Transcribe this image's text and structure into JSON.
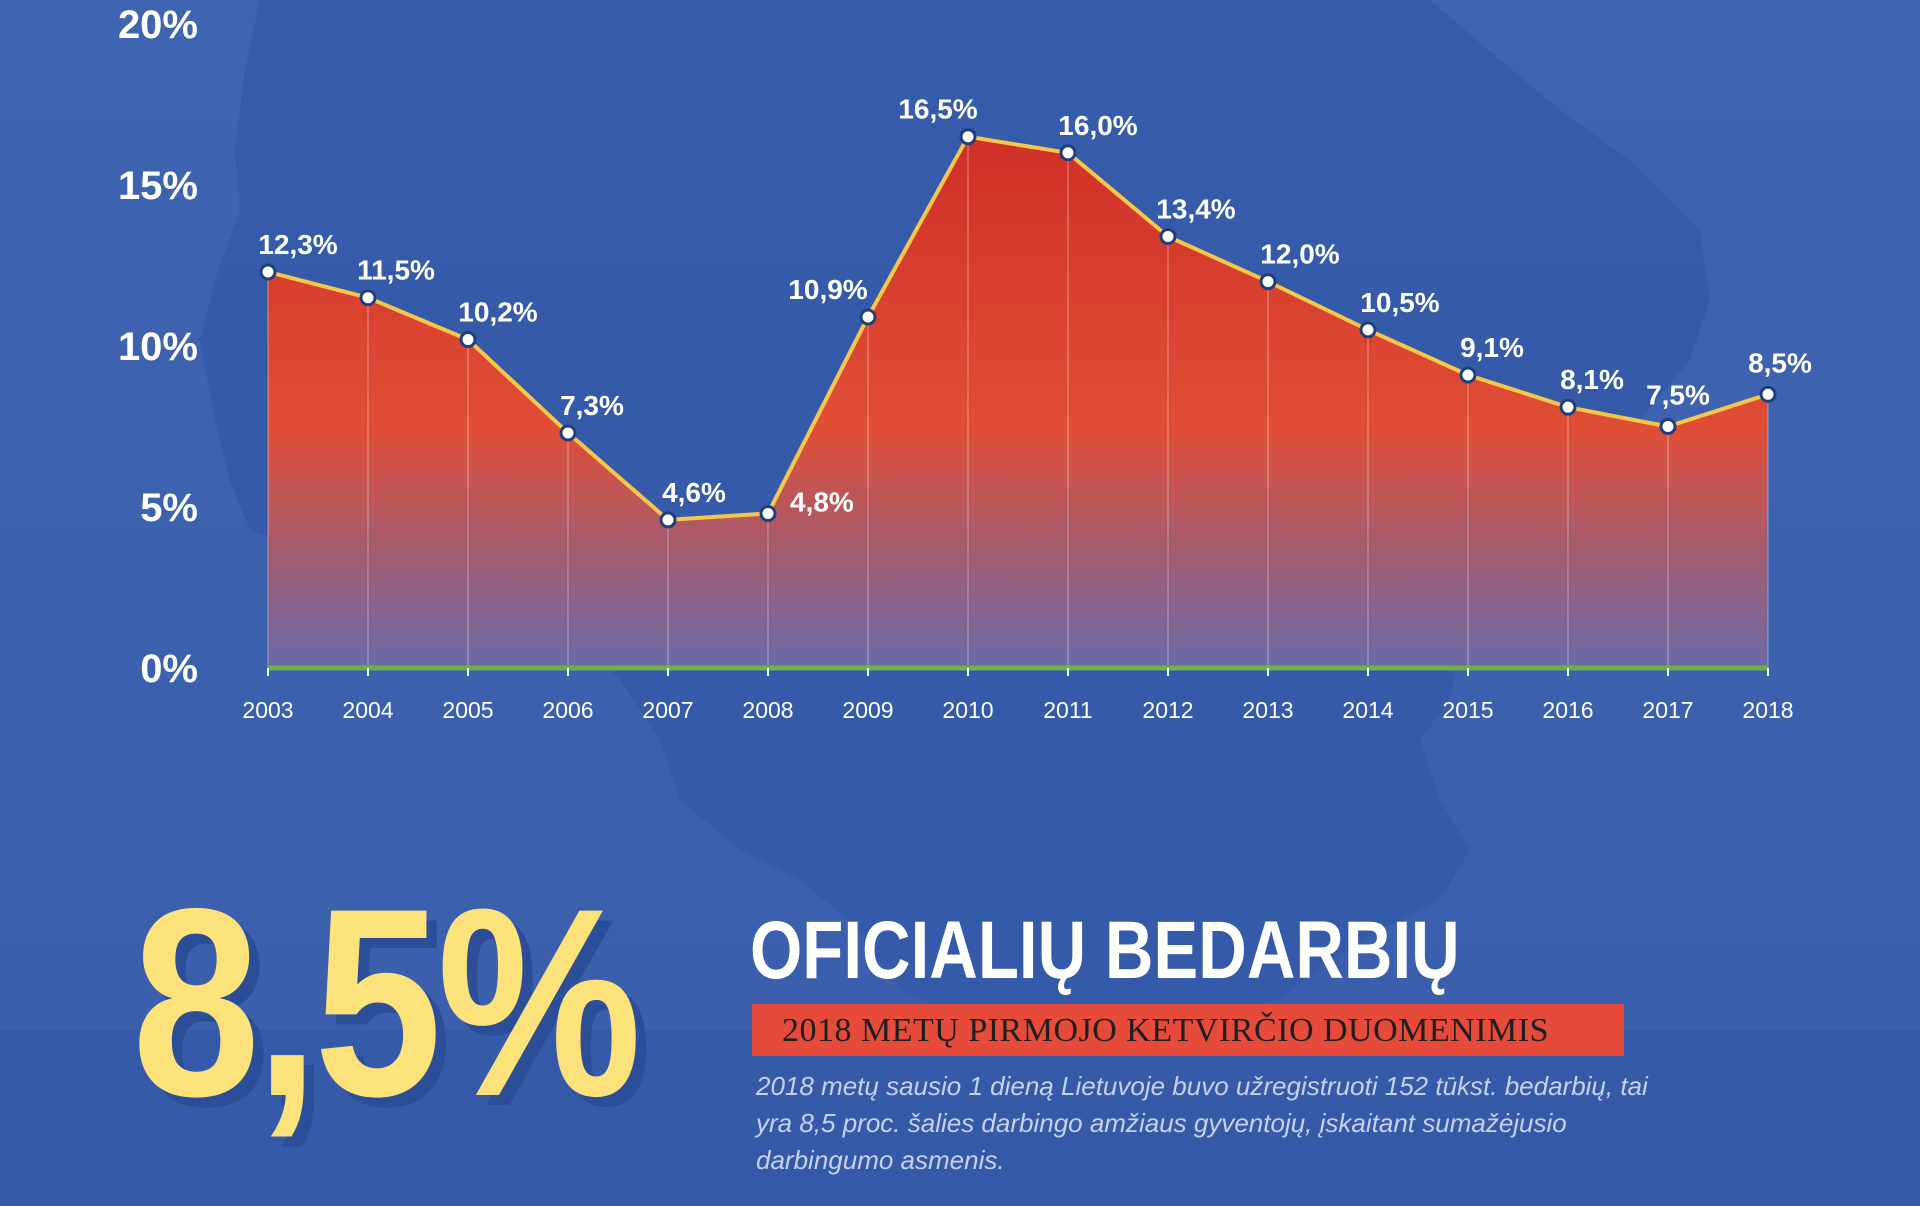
{
  "headline": {
    "big_value": "8,5%",
    "title": "OFICIALIŲ BEDARBIŲ",
    "subtitle": "2018 METŲ PIRMOJO KETVIRČIO DUOMENIMIS",
    "description": "2018 metų sausio 1 dieną Lietuvoje buvo užregistruoti 152 tūkst. bedarbių, tai yra 8,5 proc. šalies darbingo amžiaus gyventojų, įskaitant sumažėjusio darbingumo asmenis."
  },
  "colors": {
    "background": "#3d63b0",
    "map_silhouette": "#3358a8",
    "area_top": "#d03028",
    "area_mid": "#e04e36",
    "area_bottom": "#6a6aa8",
    "line": "#f4c64a",
    "baseline": "#6ab04c",
    "big_value": "#fbe27a",
    "subtitle_box": "#e64a3a"
  },
  "chart_data": {
    "type": "area",
    "categories": [
      "2003",
      "2004",
      "2005",
      "2006",
      "2007",
      "2008",
      "2009",
      "2010",
      "2011",
      "2012",
      "2013",
      "2014",
      "2015",
      "2016",
      "2017",
      "2018"
    ],
    "values": [
      12.3,
      11.5,
      10.2,
      7.3,
      4.6,
      4.8,
      10.9,
      16.5,
      16.0,
      13.4,
      12.0,
      10.5,
      9.1,
      8.1,
      7.5,
      8.5
    ],
    "data_labels": [
      "12,3%",
      "11,5%",
      "10,2%",
      "7,3%",
      "4,6%",
      "4,8%",
      "10,9%",
      "16,5%",
      "16,0%",
      "13,4%",
      "12,0%",
      "10,5%",
      "9,1%",
      "8,1%",
      "7,5%",
      "8,5%"
    ],
    "y_ticks": [
      0,
      5,
      10,
      15,
      20
    ],
    "y_tick_labels": [
      "0%",
      "5%",
      "10%",
      "15%",
      "20%"
    ],
    "ylim": [
      0,
      20
    ],
    "grid": false,
    "title": "",
    "xlabel": "",
    "ylabel": ""
  }
}
